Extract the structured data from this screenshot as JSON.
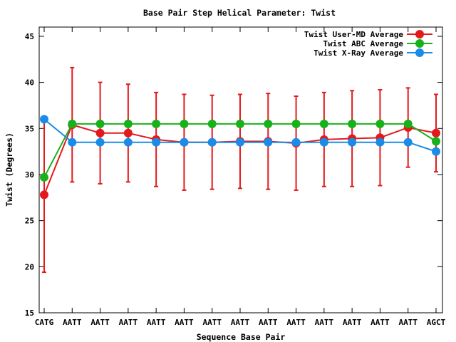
{
  "chart_data": {
    "type": "line",
    "title": "Base Pair Step Helical Parameter: Twist",
    "xlabel": "Sequence Base Pair",
    "ylabel": "Twist (Degrees)",
    "categories": [
      "CATG",
      "AATT",
      "AATT",
      "AATT",
      "AATT",
      "AATT",
      "AATT",
      "AATT",
      "AATT",
      "AATT",
      "AATT",
      "AATT",
      "AATT",
      "AATT",
      "AGCT"
    ],
    "ylim": [
      15,
      46
    ],
    "yticks": [
      15,
      20,
      25,
      30,
      35,
      40,
      45
    ],
    "legend_position": "top-right",
    "grid": false,
    "series": [
      {
        "name": "Twist User-MD Average",
        "color": "#e31a1c",
        "values": [
          27.8,
          35.4,
          34.5,
          34.5,
          33.8,
          33.5,
          33.5,
          33.6,
          33.6,
          33.4,
          33.8,
          33.9,
          34.0,
          35.1,
          34.5
        ],
        "error": [
          8.4,
          6.2,
          5.5,
          5.3,
          5.1,
          5.2,
          5.1,
          5.1,
          5.2,
          5.1,
          5.1,
          5.2,
          5.2,
          4.3,
          4.2
        ]
      },
      {
        "name": "Twist ABC Average",
        "color": "#17b21b",
        "values": [
          29.7,
          35.5,
          35.5,
          35.5,
          35.5,
          35.5,
          35.5,
          35.5,
          35.5,
          35.5,
          35.5,
          35.5,
          35.5,
          35.5,
          33.6
        ]
      },
      {
        "name": "Twist X-Ray Average",
        "color": "#1a8ce8",
        "values": [
          36.0,
          33.5,
          33.5,
          33.5,
          33.5,
          33.5,
          33.5,
          33.5,
          33.5,
          33.5,
          33.5,
          33.5,
          33.5,
          33.5,
          32.5
        ]
      }
    ]
  }
}
